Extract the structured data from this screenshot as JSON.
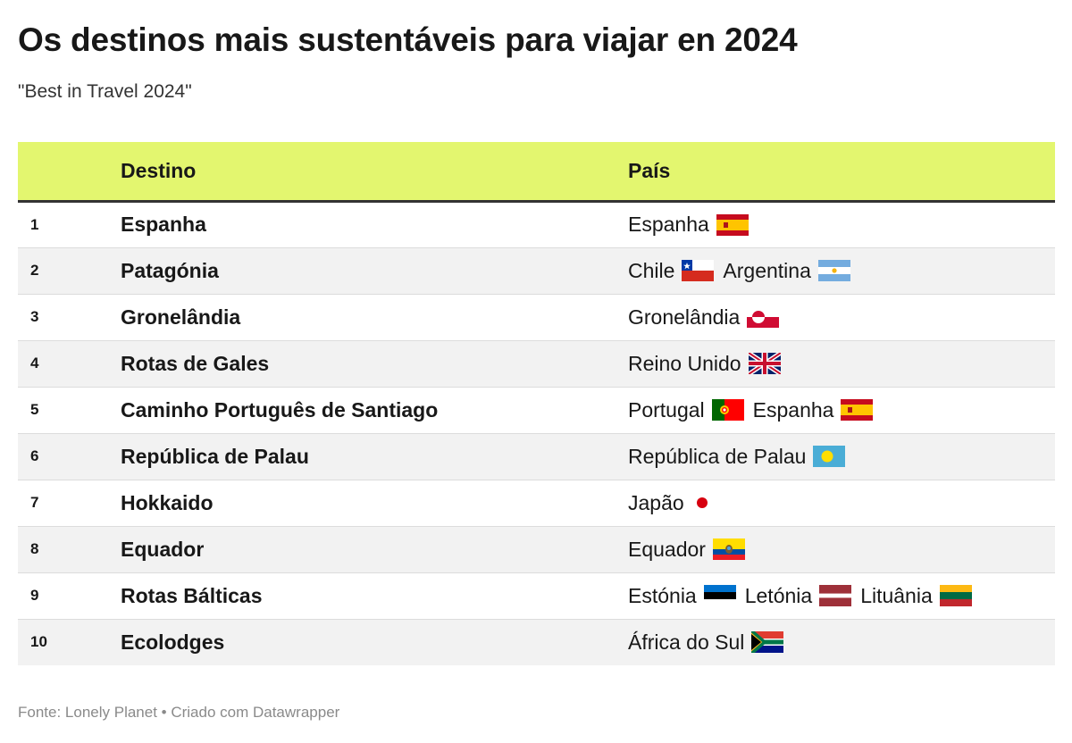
{
  "title": "Os destinos mais sustentáveis para viajar en 2024",
  "subtitle": "\"Best in Travel 2024\"",
  "table": {
    "headers": {
      "rank": "",
      "destination": "Destino",
      "country": "País"
    },
    "rows": [
      {
        "rank": "1",
        "destination": "Espanha",
        "countries": [
          {
            "name": "Espanha",
            "flag": "spain"
          }
        ]
      },
      {
        "rank": "2",
        "destination": "Patagónia",
        "countries": [
          {
            "name": "Chile",
            "flag": "chile"
          },
          {
            "name": "Argentina",
            "flag": "argentina"
          }
        ]
      },
      {
        "rank": "3",
        "destination": "Gronelândia",
        "countries": [
          {
            "name": "Gronelândia",
            "flag": "greenland"
          }
        ]
      },
      {
        "rank": "4",
        "destination": "Rotas de Gales",
        "countries": [
          {
            "name": "Reino Unido",
            "flag": "uk"
          }
        ]
      },
      {
        "rank": "5",
        "destination": "Caminho Português de Santiago",
        "countries": [
          {
            "name": "Portugal",
            "flag": "portugal"
          },
          {
            "name": "Espanha",
            "flag": "spain"
          }
        ]
      },
      {
        "rank": "6",
        "destination": "República de Palau",
        "countries": [
          {
            "name": "República de Palau",
            "flag": "palau"
          }
        ]
      },
      {
        "rank": "7",
        "destination": "Hokkaido",
        "countries": [
          {
            "name": "Japão",
            "flag": "japan"
          }
        ]
      },
      {
        "rank": "8",
        "destination": "Equador",
        "countries": [
          {
            "name": "Equador",
            "flag": "ecuador"
          }
        ]
      },
      {
        "rank": "9",
        "destination": "Rotas Bálticas",
        "countries": [
          {
            "name": "Estónia",
            "flag": "estonia"
          },
          {
            "name": "Letónia",
            "flag": "latvia"
          },
          {
            "name": "Lituânia",
            "flag": "lithuania"
          }
        ]
      },
      {
        "rank": "10",
        "destination": "Ecolodges",
        "countries": [
          {
            "name": "África do Sul",
            "flag": "south-africa"
          }
        ]
      }
    ]
  },
  "footer": "Fonte: Lonely Planet • Criado com Datawrapper",
  "colors": {
    "header_bg": "#e3f66f",
    "stripe": "#f2f2f2",
    "footer_text": "#8a8a8a"
  }
}
